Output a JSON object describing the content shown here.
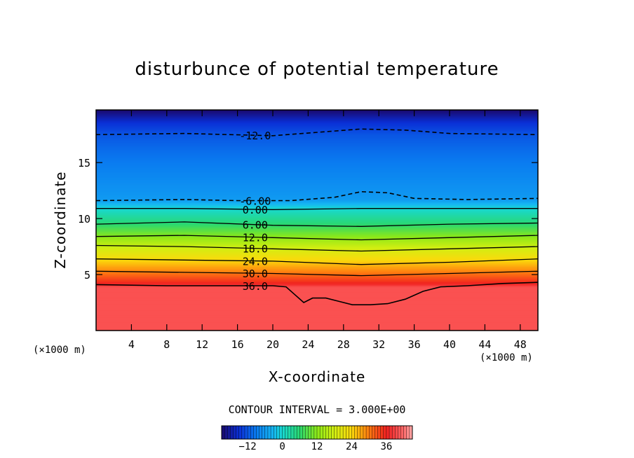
{
  "chart_data": {
    "type": "heatmap",
    "title": "disturbunce of potential temperature",
    "xlabel": "X-coordinate",
    "ylabel": "Z-coordinate",
    "x_unit": "(×1000 m)",
    "y_unit": "(×1000 m)",
    "xlim": [
      0,
      50
    ],
    "ylim": [
      0,
      19.7
    ],
    "xticks": [
      4,
      8,
      12,
      16,
      20,
      24,
      28,
      32,
      36,
      40,
      44,
      48
    ],
    "yticks": [
      5,
      10,
      15
    ],
    "contour_interval_label": "CONTOUR INTERVAL = 3.000E+00",
    "contour_interval": 3,
    "colorbar": {
      "min": -21,
      "max": 45,
      "ticks": [
        -12,
        0,
        12,
        24,
        36
      ]
    },
    "contours": [
      {
        "value": -12,
        "label": "-12.0",
        "style": "dashed",
        "x": [
          0,
          10,
          20,
          25,
          30,
          35,
          40,
          50
        ],
        "z": [
          17.5,
          17.6,
          17.4,
          17.7,
          18.0,
          17.9,
          17.6,
          17.5
        ]
      },
      {
        "value": -6,
        "label": "-6.00",
        "style": "dashed",
        "x": [
          0,
          10,
          16,
          22,
          27,
          30,
          33,
          36,
          42,
          50
        ],
        "z": [
          11.6,
          11.7,
          11.6,
          11.6,
          11.9,
          12.4,
          12.3,
          11.8,
          11.7,
          11.8
        ]
      },
      {
        "value": 0,
        "label": "0.00",
        "style": "solid",
        "x": [
          0,
          10,
          20,
          30,
          40,
          50
        ],
        "z": [
          10.9,
          10.9,
          10.8,
          10.9,
          10.9,
          10.9
        ]
      },
      {
        "value": 6,
        "label": "6.00",
        "style": "solid",
        "x": [
          0,
          10,
          20,
          30,
          40,
          50
        ],
        "z": [
          9.5,
          9.7,
          9.4,
          9.3,
          9.5,
          9.6
        ]
      },
      {
        "value": 12,
        "label": "12.0",
        "style": "solid",
        "x": [
          0,
          10,
          20,
          30,
          40,
          50
        ],
        "z": [
          8.4,
          8.5,
          8.3,
          8.1,
          8.3,
          8.5
        ]
      },
      {
        "value": 18,
        "label": "18.0",
        "style": "solid",
        "x": [
          0,
          10,
          20,
          30,
          40,
          50
        ],
        "z": [
          7.6,
          7.5,
          7.3,
          7.1,
          7.3,
          7.5
        ]
      },
      {
        "value": 24,
        "label": "24.0",
        "style": "solid",
        "x": [
          0,
          10,
          20,
          30,
          40,
          50
        ],
        "z": [
          6.4,
          6.3,
          6.2,
          5.9,
          6.1,
          6.4
        ]
      },
      {
        "value": 30,
        "label": "30.0",
        "style": "solid",
        "x": [
          0,
          10,
          20,
          30,
          40,
          50
        ],
        "z": [
          5.3,
          5.2,
          5.1,
          4.9,
          5.1,
          5.3
        ]
      },
      {
        "value": 36,
        "label": "36.0",
        "style": "solid",
        "x": [
          0,
          8,
          16,
          20,
          21.5,
          22.5,
          23.5,
          24.5,
          26,
          27.5,
          29,
          31,
          33,
          35,
          37,
          39,
          42,
          46,
          50
        ],
        "z": [
          4.1,
          4.0,
          4.0,
          4.0,
          3.9,
          3.2,
          2.5,
          2.9,
          2.9,
          2.6,
          2.3,
          2.3,
          2.4,
          2.8,
          3.5,
          3.9,
          4.0,
          4.2,
          4.3
        ]
      }
    ]
  }
}
